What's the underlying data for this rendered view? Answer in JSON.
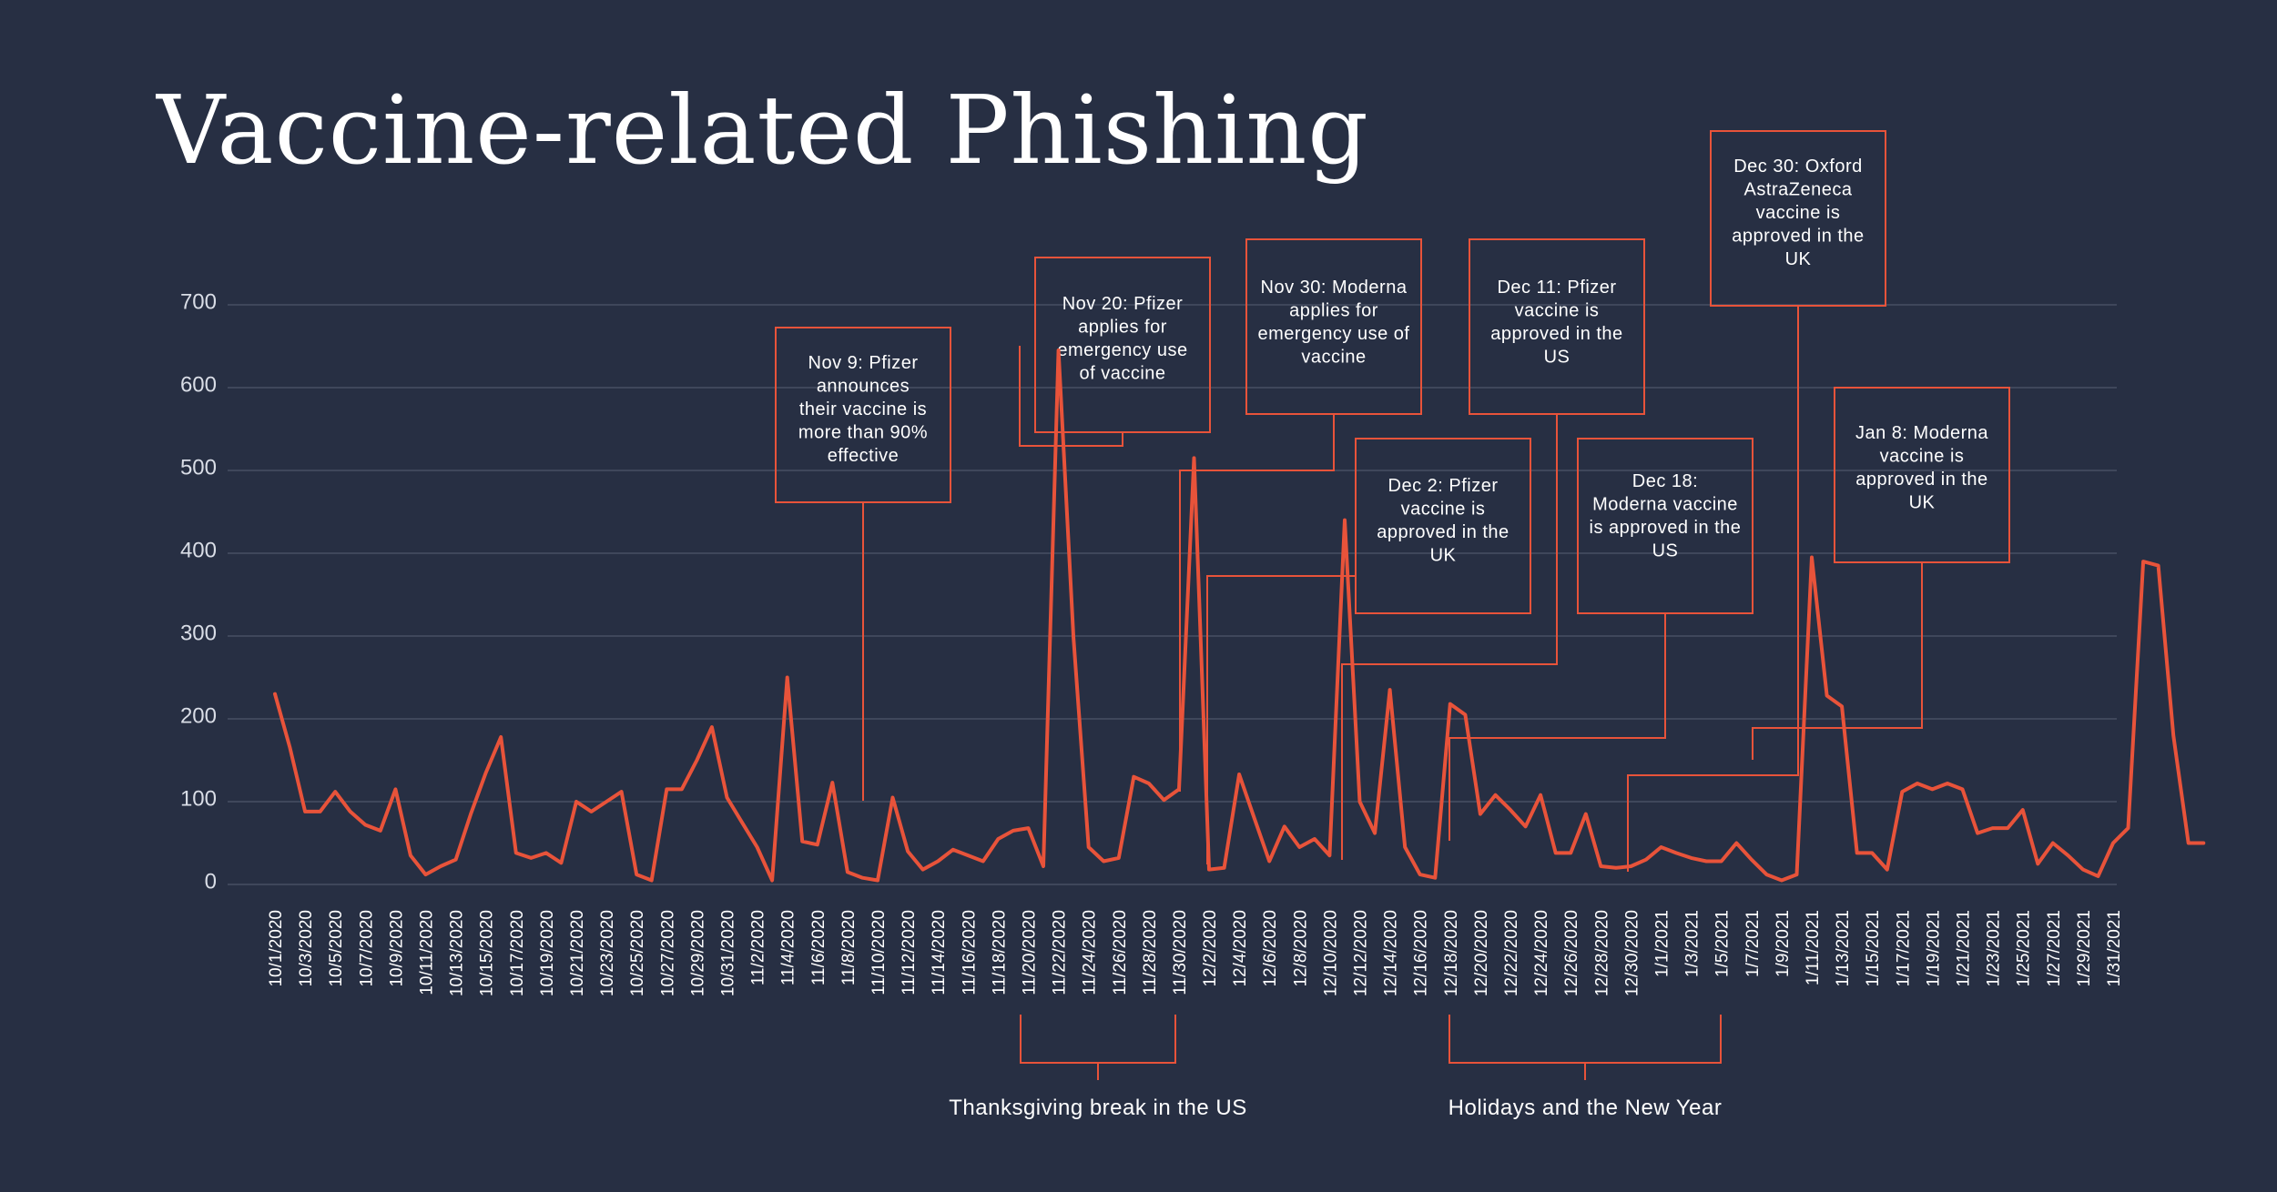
{
  "title": "Vaccine-related Phishing",
  "colors": {
    "background": "#272f43",
    "line": "#e8533a",
    "grid": "#4e566a",
    "text": "#ffffff"
  },
  "chart_data": {
    "type": "line",
    "title": "Vaccine-related Phishing",
    "xlabel": "",
    "ylabel": "",
    "ylim": [
      0,
      700
    ],
    "yticks": [
      0,
      100,
      200,
      300,
      400,
      500,
      600,
      700
    ],
    "grid": true,
    "x_start": "10/1/2020",
    "x_end": "1/31/2021",
    "xtick_labels": [
      "10/1/2020",
      "10/3/2020",
      "10/5/2020",
      "10/7/2020",
      "10/9/2020",
      "10/11/2020",
      "10/13/2020",
      "10/15/2020",
      "10/17/2020",
      "10/19/2020",
      "10/21/2020",
      "10/23/2020",
      "10/25/2020",
      "10/27/2020",
      "10/29/2020",
      "10/31/2020",
      "11/2/2020",
      "11/4/2020",
      "11/6/2020",
      "11/8/2020",
      "11/10/2020",
      "11/12/2020",
      "11/14/2020",
      "11/16/2020",
      "11/18/2020",
      "11/20/2020",
      "11/22/2020",
      "11/24/2020",
      "11/26/2020",
      "11/28/2020",
      "11/30/2020",
      "12/2/2020",
      "12/4/2020",
      "12/6/2020",
      "12/8/2020",
      "12/10/2020",
      "12/12/2020",
      "12/14/2020",
      "12/16/2020",
      "12/18/2020",
      "12/20/2020",
      "12/22/2020",
      "12/24/2020",
      "12/26/2020",
      "12/28/2020",
      "12/30/2020",
      "1/1/2021",
      "1/3/2021",
      "1/5/2021",
      "1/7/2021",
      "1/9/2021",
      "1/11/2021",
      "1/13/2021",
      "1/15/2021",
      "1/17/2021",
      "1/19/2021",
      "1/21/2021",
      "1/23/2021",
      "1/25/2021",
      "1/27/2021",
      "1/29/2021",
      "1/31/2021"
    ],
    "series": [
      {
        "values": [
          230,
          165,
          88,
          88,
          112,
          88,
          72,
          65,
          115,
          35,
          12,
          22,
          30,
          85,
          135,
          178,
          38,
          32,
          38,
          26,
          100,
          88,
          100,
          112,
          12,
          5,
          115,
          115,
          150,
          190,
          105,
          75,
          45,
          5,
          250,
          52,
          48,
          123,
          15,
          8,
          5,
          105,
          40,
          18,
          28,
          42,
          35,
          28,
          55,
          65,
          68,
          22,
          645,
          298,
          45,
          28,
          32,
          130,
          122,
          102,
          115,
          515,
          18,
          20,
          133,
          80,
          28,
          70,
          45,
          55,
          35,
          440,
          100,
          62,
          235,
          45,
          12,
          8,
          218,
          205,
          85,
          108,
          90,
          70,
          108,
          38,
          38,
          85,
          22,
          20,
          22,
          30,
          45,
          38,
          32,
          28,
          28,
          50,
          30,
          12,
          5,
          12,
          395,
          228,
          215,
          38,
          38,
          18,
          112,
          122,
          115,
          122,
          115,
          62,
          68,
          68,
          90,
          25,
          50,
          35,
          18,
          10,
          50,
          68,
          390,
          385,
          180,
          50,
          50
        ]
      }
    ],
    "annotations": [
      {
        "date": "11/9/2020",
        "lines": [
          "Nov 9: Pfizer",
          "announces",
          "their vaccine is",
          "more than 90%",
          "effective"
        ]
      },
      {
        "date": "11/20/2020",
        "lines": [
          "Nov 20: Pfizer",
          "applies for",
          "emergency use",
          "of vaccine"
        ]
      },
      {
        "date": "11/30/2020",
        "lines": [
          "Nov 30: Moderna",
          "applies for",
          "emergency use of",
          "vaccine"
        ]
      },
      {
        "date": "12/2/2020",
        "lines": [
          "Dec 2: Pfizer",
          "vaccine is",
          "approved in the",
          "UK"
        ]
      },
      {
        "date": "12/11/2020",
        "lines": [
          "Dec 11: Pfizer",
          "vaccine is",
          "approved in the",
          "US"
        ]
      },
      {
        "date": "12/18/2020",
        "lines": [
          "Dec 18:",
          "Moderna vaccine",
          "is approved in the",
          "US"
        ]
      },
      {
        "date": "12/30/2020",
        "lines": [
          "Dec 30: Oxford",
          "AstraZeneca",
          "vaccine is",
          "approved in the",
          "UK"
        ]
      },
      {
        "date": "1/8/2021",
        "lines": [
          "Jan 8: Moderna",
          "vaccine is",
          "approved in the",
          "UK"
        ]
      }
    ],
    "periods": [
      {
        "label": "Thanksgiving break in the US"
      },
      {
        "label": "Holidays and the New Year"
      }
    ]
  }
}
